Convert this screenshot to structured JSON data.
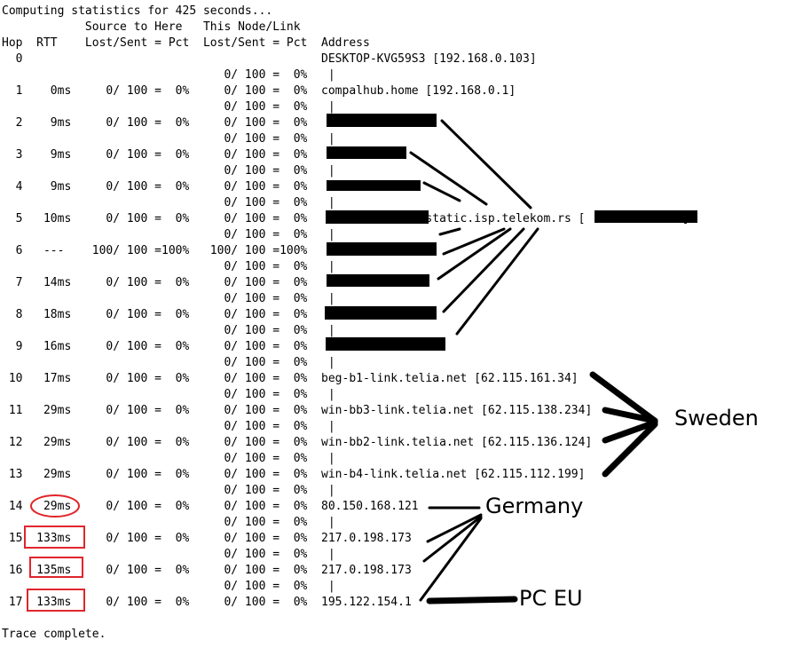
{
  "console": {
    "header_lines": [
      "Computing statistics for 425 seconds...",
      "            Source to Here   This Node/Link",
      "Hop  RTT    Lost/Sent = Pct  Lost/Sent = Pct  Address"
    ],
    "body_lines": [
      "  0                                           DESKTOP-KVG59S3 [192.168.0.103]",
      "                                0/ 100 =  0%   |",
      "  1    0ms     0/ 100 =  0%     0/ 100 =  0%  compalhub.home [192.168.0.1]",
      "                                0/ 100 =  0%   |",
      "  2    9ms     0/ 100 =  0%     0/ 100 =  0%",
      "                                0/ 100 =  0%   |",
      "  3    9ms     0/ 100 =  0%     0/ 100 =  0%",
      "                                0/ 100 =  0%   |",
      "  4    9ms     0/ 100 =  0%     0/ 100 =  0%",
      "                                0/ 100 =  0%   |",
      "  5   10ms     0/ 100 =  0%     0/ 100 =  0%                .static.isp.telekom.rs [              ]",
      "                                0/ 100 =  0%   |",
      "  6   ---    100/ 100 =100%   100/ 100 =100%",
      "                                0/ 100 =  0%   |",
      "  7   14ms     0/ 100 =  0%     0/ 100 =  0%",
      "                                0/ 100 =  0%   |",
      "  8   18ms     0/ 100 =  0%     0/ 100 =  0%",
      "                                0/ 100 =  0%   |",
      "  9   16ms     0/ 100 =  0%     0/ 100 =  0%",
      "                                0/ 100 =  0%   |",
      " 10   17ms     0/ 100 =  0%     0/ 100 =  0%  beg-b1-link.telia.net [62.115.161.34]",
      "                                0/ 100 =  0%   |",
      " 11   29ms     0/ 100 =  0%     0/ 100 =  0%  win-bb3-link.telia.net [62.115.138.234]",
      "                                0/ 100 =  0%   |",
      " 12   29ms     0/ 100 =  0%     0/ 100 =  0%  win-bb2-link.telia.net [62.115.136.124]",
      "                                0/ 100 =  0%   |",
      " 13   29ms     0/ 100 =  0%     0/ 100 =  0%  win-b4-link.telia.net [62.115.112.199]",
      "                                0/ 100 =  0%   |",
      " 14   29ms     0/ 100 =  0%     0/ 100 =  0%  80.150.168.121",
      "                                0/ 100 =  0%   |",
      " 15  133ms     0/ 100 =  0%     0/ 100 =  0%  217.0.198.173",
      "                                0/ 100 =  0%   |",
      " 16  135ms     0/ 100 =  0%     0/ 100 =  0%  217.0.198.173",
      "                                0/ 100 =  0%   |",
      " 17  133ms     0/ 100 =  0%     0/ 100 =  0%  195.122.154.1"
    ],
    "footer_lines": [
      "",
      "Trace complete."
    ]
  },
  "annotations": {
    "sweden_label": "Sweden",
    "germany_label": "Germany",
    "pc_eu_label": "PC EU",
    "highlight_color": "#e0262b",
    "ink_color": "#000000"
  }
}
